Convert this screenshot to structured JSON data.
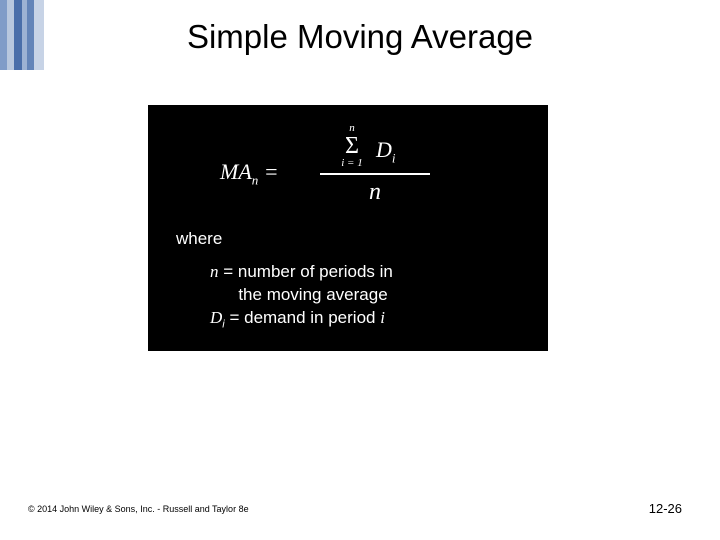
{
  "sidebar": {
    "bars": [
      {
        "color": "#809cc8",
        "width": 7
      },
      {
        "color": "#b8c7de",
        "width": 7
      },
      {
        "color": "#4a6ea9",
        "width": 8
      },
      {
        "color": "#9db2d3",
        "width": 5
      },
      {
        "color": "#6384b8",
        "width": 7
      },
      {
        "color": "#c7d3e6",
        "width": 10
      }
    ]
  },
  "title": "Simple Moving Average",
  "box": {
    "background": "#000000",
    "text_color": "#ffffff"
  },
  "formula": {
    "lhs_ma": "MA",
    "lhs_sub": "n",
    "equals": " =",
    "sigma_upper": "n",
    "sigma_symbol": "Σ",
    "sigma_lower": "i = 1",
    "term": "D",
    "term_sub": "i",
    "denom": "n"
  },
  "where_label": "where",
  "defs": {
    "n_sym": "n",
    "n_eq": " = number of periods in",
    "n_eq2": "      the moving average",
    "d_sym": "D",
    "d_sub": "i",
    "d_eq": " = demand in period ",
    "d_tail": "i"
  },
  "copyright": "© 2014 John Wiley & Sons, Inc. - Russell and Taylor 8e",
  "pagenum": "12-26"
}
